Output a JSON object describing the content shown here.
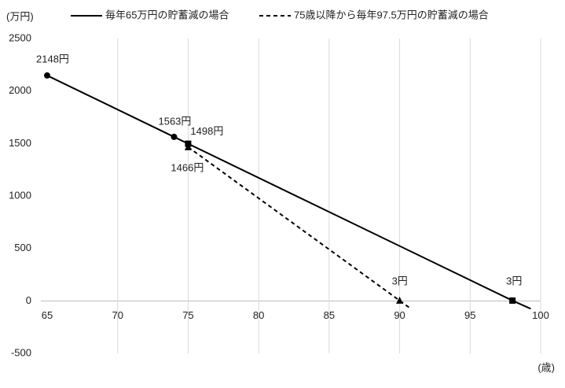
{
  "chart_data": {
    "type": "line",
    "y_unit": "(万円)",
    "x_unit": "(歳)",
    "xlim": [
      65,
      100
    ],
    "xticks": [
      65,
      70,
      75,
      80,
      85,
      90,
      95,
      100
    ],
    "ylim": [
      -500,
      2500
    ],
    "yticks": [
      -500,
      0,
      500,
      1000,
      1500,
      2000,
      2500
    ],
    "grid": "vertical",
    "legend": "top",
    "series": [
      {
        "name": "毎年65万円の貯蓄減の場合",
        "color": "#000000",
        "dash": "solid",
        "x": [
          65,
          74,
          75,
          98,
          99.3
        ],
        "values": [
          2148,
          1563,
          1498,
          3,
          -75
        ],
        "value_labels": [
          "2148円",
          "1563円",
          "1498円",
          "3円",
          null
        ],
        "markers": [
          "circle",
          "circle",
          "square",
          "square",
          null
        ]
      },
      {
        "name": "75歳以降から毎年97.5万円の貯蓄減の場合",
        "color": "#000000",
        "dash": "dashed",
        "x": [
          75,
          90,
          90.8
        ],
        "values": [
          1466,
          3,
          -75
        ],
        "value_labels": [
          "1466円",
          "3円",
          null
        ],
        "markers": [
          "triangle",
          "triangle",
          null
        ]
      }
    ]
  }
}
